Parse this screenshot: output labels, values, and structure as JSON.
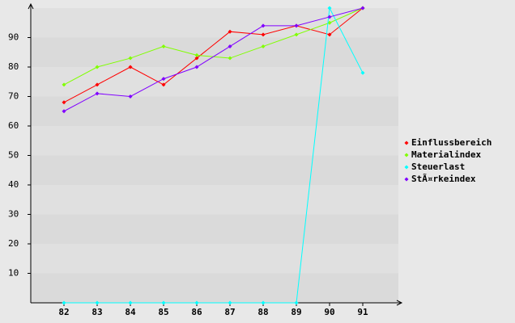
{
  "chart_data": {
    "type": "line",
    "x": [
      82,
      83,
      84,
      85,
      86,
      87,
      88,
      89,
      90,
      91
    ],
    "xlim": [
      81,
      92
    ],
    "xticks": [
      82,
      83,
      84,
      85,
      86,
      87,
      88,
      89,
      90,
      91
    ],
    "ylim": [
      0,
      100
    ],
    "yticks": [
      10,
      20,
      30,
      40,
      50,
      60,
      70,
      80,
      90
    ],
    "grid": true,
    "legend": "right",
    "series": [
      {
        "name": "Einflussbereich",
        "color": "#ff0000",
        "values": [
          68,
          74,
          80,
          74,
          83,
          92,
          91,
          94,
          91,
          100
        ]
      },
      {
        "name": "Materialindex",
        "color": "#80ff00",
        "values": [
          74,
          80,
          83,
          87,
          84,
          83,
          87,
          91,
          95,
          100
        ]
      },
      {
        "name": "Steuerlast",
        "color": "#00ffff",
        "values": [
          0,
          0,
          0,
          0,
          0,
          0,
          0,
          0,
          100,
          78
        ]
      },
      {
        "name": "StÃ¤rkeindex",
        "color": "#8000ff",
        "values": [
          65,
          71,
          70,
          76,
          80,
          87,
          94,
          94,
          97,
          100
        ]
      }
    ]
  }
}
